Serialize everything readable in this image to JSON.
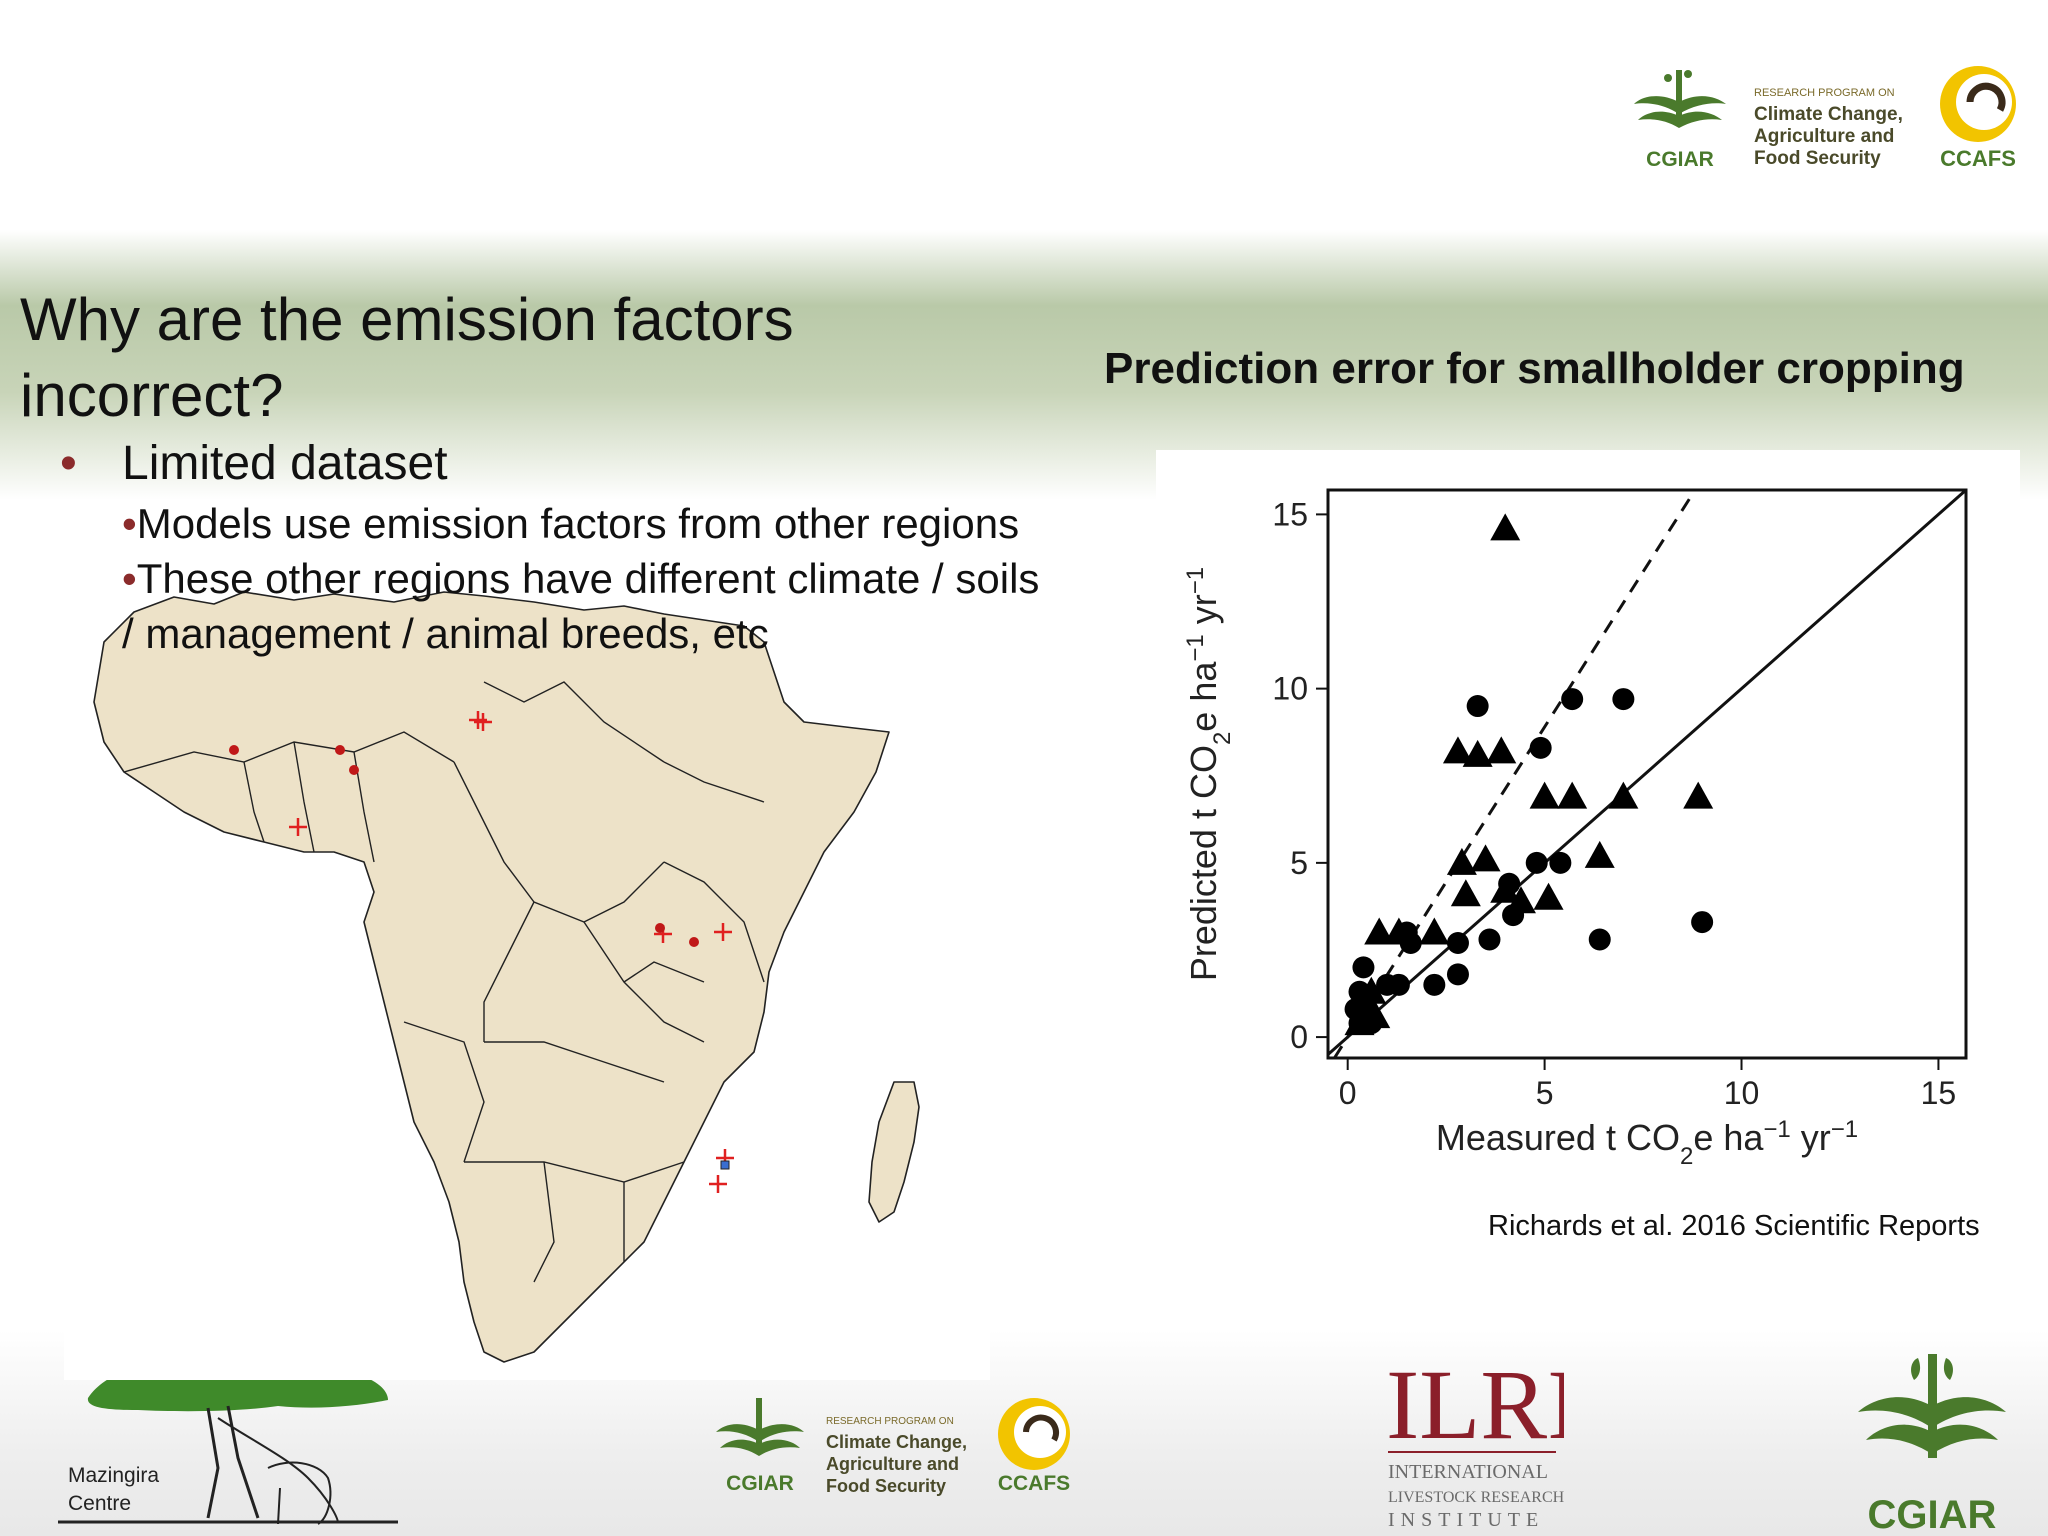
{
  "slide": {
    "title": "Why are the emission factors incorrect?",
    "bullet": "Limited dataset",
    "sub_bullets": [
      "Models use emission factors from other regions",
      "These other regions have different climate / soils / management / animal breeds, etc"
    ],
    "sub_bullet_marker": "•",
    "bullet_marker": "•"
  },
  "chart_title": "Prediction error for smallholder cropping",
  "citation": "Richards et al. 2016 Scientific Reports",
  "logos": {
    "top": {
      "cgiar": "CGIAR",
      "program_small": "RESEARCH PROGRAM ON",
      "program_lines": [
        "Climate Change,",
        "Agriculture and",
        "Food Security"
      ],
      "ccafs": "CCAFS"
    },
    "bottom_ccafs": {
      "cgiar": "CGIAR",
      "program_small": "RESEARCH PROGRAM ON",
      "program_lines": [
        "Climate Change,",
        "Agriculture and",
        "Food Security"
      ],
      "ccafs": "CCAFS"
    },
    "mazingira": [
      "Mazingira",
      "Centre"
    ],
    "ilri": {
      "mark": "ILRI",
      "lines": [
        "INTERNATIONAL",
        "LIVESTOCK RESEARCH",
        "INSTITUTE"
      ]
    },
    "cgiar_bottom_right": "CGIAR",
    "colors": {
      "cgiar_green": "#4a7a2c",
      "ccafs_yellow": "#f2c400",
      "ilri_red": "#8b1f2a"
    }
  },
  "chart_data": {
    "type": "scatter",
    "title": "",
    "xlabel": "Measured t CO2e ha-1 yr-1",
    "ylabel": "Predicted t CO2e ha-1 yr-1",
    "xlim": [
      -0.5,
      15.7
    ],
    "ylim": [
      -0.6,
      15.7
    ],
    "xticks": [
      0,
      5,
      10,
      15
    ],
    "yticks": [
      0,
      5,
      10,
      15
    ],
    "grid": false,
    "reference_lines": [
      {
        "style": "solid",
        "slope": 1.0,
        "intercept": 0
      },
      {
        "style": "dashed",
        "slope": 1.78,
        "intercept": 0
      }
    ],
    "series": [
      {
        "marker": "triangle",
        "points": [
          [
            4.0,
            14.6
          ],
          [
            2.8,
            8.2
          ],
          [
            3.3,
            8.1
          ],
          [
            3.9,
            8.2
          ],
          [
            5.0,
            6.9
          ],
          [
            5.7,
            6.9
          ],
          [
            7.0,
            6.9
          ],
          [
            8.9,
            6.9
          ],
          [
            3.5,
            5.1
          ],
          [
            2.9,
            5.0
          ],
          [
            6.4,
            5.2
          ],
          [
            3.0,
            4.1
          ],
          [
            4.0,
            4.2
          ],
          [
            4.4,
            3.9
          ],
          [
            5.1,
            4.0
          ],
          [
            0.8,
            3.0
          ],
          [
            1.3,
            3.0
          ],
          [
            2.2,
            3.0
          ],
          [
            0.6,
            1.3
          ],
          [
            0.5,
            0.9
          ],
          [
            0.4,
            0.5
          ],
          [
            0.7,
            0.6
          ],
          [
            0.3,
            0.4
          ]
        ]
      },
      {
        "marker": "circle",
        "points": [
          [
            3.3,
            9.5
          ],
          [
            5.7,
            9.7
          ],
          [
            7.0,
            9.7
          ],
          [
            4.9,
            8.3
          ],
          [
            4.8,
            5.0
          ],
          [
            5.4,
            5.0
          ],
          [
            4.1,
            4.4
          ],
          [
            4.2,
            3.5
          ],
          [
            6.4,
            2.8
          ],
          [
            9.0,
            3.3
          ],
          [
            3.6,
            2.8
          ],
          [
            2.8,
            2.7
          ],
          [
            1.5,
            3.0
          ],
          [
            1.6,
            2.7
          ],
          [
            2.8,
            1.8
          ],
          [
            2.2,
            1.5
          ],
          [
            1.0,
            1.5
          ],
          [
            1.3,
            1.5
          ],
          [
            0.4,
            2.0
          ],
          [
            0.3,
            1.3
          ],
          [
            0.4,
            1.0
          ],
          [
            0.2,
            0.8
          ],
          [
            0.3,
            0.4
          ],
          [
            0.6,
            0.4
          ]
        ]
      }
    ]
  }
}
